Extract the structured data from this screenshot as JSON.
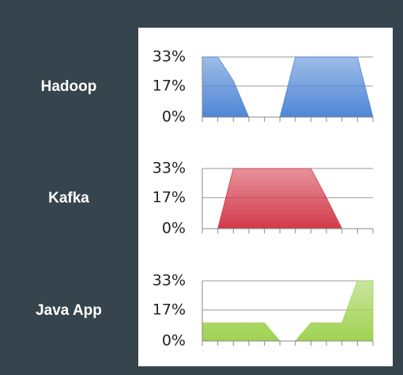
{
  "chart_data": [
    {
      "type": "area",
      "title": "Hadoop",
      "color": "#4f86d6",
      "values": [
        33,
        33,
        20,
        0,
        0,
        0,
        33,
        33,
        33,
        33,
        33,
        0
      ],
      "ylim": [
        0,
        33
      ],
      "yticks": [
        {
          "value": 0,
          "label": "0%"
        },
        {
          "value": 17,
          "label": "17%"
        },
        {
          "value": 33,
          "label": "33%"
        }
      ],
      "grid": true
    },
    {
      "type": "area",
      "title": "Kafka",
      "color": "#d23a4a",
      "values": [
        0,
        0,
        33,
        33,
        33,
        33,
        33,
        33,
        17,
        0,
        0,
        0
      ],
      "ylim": [
        0,
        33
      ],
      "yticks": [
        {
          "value": 0,
          "label": "0%"
        },
        {
          "value": 17,
          "label": "17%"
        },
        {
          "value": 33,
          "label": "33%"
        }
      ],
      "grid": true
    },
    {
      "type": "area",
      "title": "Java App",
      "color": "#9fd250",
      "values": [
        10,
        10,
        10,
        10,
        10,
        0,
        0,
        10,
        10,
        10,
        33,
        33
      ],
      "ylim": [
        0,
        33
      ],
      "yticks": [
        {
          "value": 0,
          "label": "0%"
        },
        {
          "value": 17,
          "label": "17%"
        },
        {
          "value": 33,
          "label": "33%"
        }
      ],
      "grid": true
    }
  ]
}
